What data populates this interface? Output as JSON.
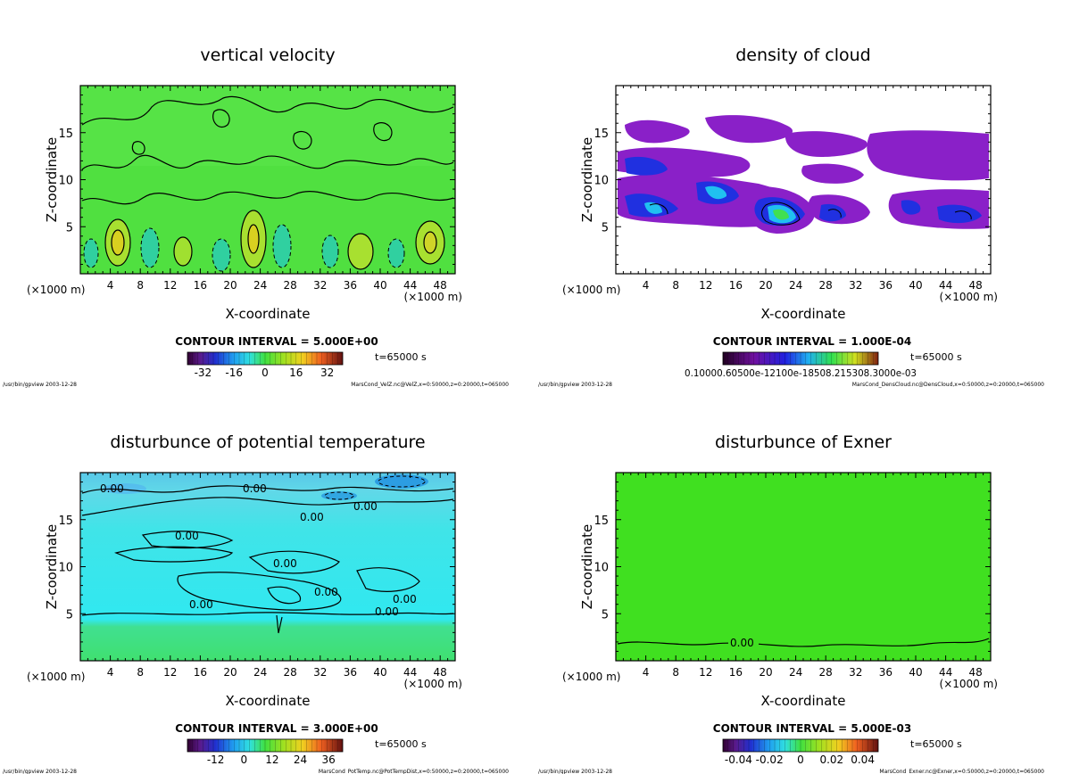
{
  "time_label": "t=65000 s",
  "chart_data": [
    {
      "type": "heatmap",
      "title": "vertical velocity",
      "xlabel": "X-coordinate",
      "ylabel": "Z-coordinate",
      "x_unit": "(×1000 m)",
      "x_ticks": [
        4,
        8,
        12,
        16,
        20,
        24,
        28,
        32,
        36,
        40,
        44,
        48
      ],
      "y_ticks": [
        5,
        10,
        15
      ],
      "xlim": [
        0,
        50
      ],
      "ylim": [
        0,
        20
      ],
      "contour_interval": "CONTOUR INTERVAL = 5.000E+00",
      "colorbar_ticks": [
        "-32",
        "-16",
        "0",
        "16",
        "32"
      ],
      "colorbar_values": [
        -32,
        -16,
        0,
        16,
        32
      ],
      "colorbar_range": [
        -40,
        40
      ],
      "colormap": "rainbow",
      "footer_left": "/usr/bin/gpview  2003-12-28",
      "footer_right": "MarsCond_VelZ.nc@VelZ,x=0:50000,z=0:20000,t=065000"
    },
    {
      "type": "heatmap",
      "title": "density of cloud",
      "xlabel": "X-coordinate",
      "ylabel": "Z-coordinate",
      "x_unit": "(×1000 m)",
      "x_ticks": [
        4,
        8,
        12,
        16,
        20,
        24,
        28,
        32,
        36,
        40,
        44,
        48
      ],
      "y_ticks": [
        5,
        10,
        15
      ],
      "xlim": [
        0,
        50
      ],
      "ylim": [
        0,
        20
      ],
      "contour_interval": "CONTOUR INTERVAL = 1.000E-04",
      "colorbar_label_text": "0.10000.60500e-12100e-18508.215308.3000e-03",
      "colormap": "purple-blue-green",
      "footer_left": "/usr/bin/gpview  2003-12-28",
      "footer_right": "MarsCond_DensCloud.nc@DensCloud,x=0:50000,z=0:20000,t=065000"
    },
    {
      "type": "heatmap",
      "title": "disturbunce of potential temperature",
      "xlabel": "X-coordinate",
      "ylabel": "Z-coordinate",
      "x_unit": "(×1000 m)",
      "x_ticks": [
        4,
        8,
        12,
        16,
        20,
        24,
        28,
        32,
        36,
        40,
        44,
        48
      ],
      "y_ticks": [
        5,
        10,
        15
      ],
      "xlim": [
        0,
        50
      ],
      "ylim": [
        0,
        20
      ],
      "contour_interval": "CONTOUR INTERVAL = 3.000E+00",
      "contour_label": "0.00",
      "colorbar_ticks": [
        "-12",
        "0",
        "12",
        "24",
        "36"
      ],
      "colorbar_values": [
        -12,
        0,
        12,
        24,
        36
      ],
      "colorbar_range": [
        -24,
        42
      ],
      "colormap": "rainbow",
      "footer_left": "/usr/bin/gpview  2003-12-28",
      "footer_right": "MarsCond_PotTemp.nc@PotTempDist,x=0:50000,z=0:20000,t=065000"
    },
    {
      "type": "heatmap",
      "title": "disturbunce of Exner",
      "xlabel": "X-coordinate",
      "ylabel": "Z-coordinate",
      "x_unit": "(×1000 m)",
      "x_ticks": [
        4,
        8,
        12,
        16,
        20,
        24,
        28,
        32,
        36,
        40,
        44,
        48
      ],
      "y_ticks": [
        5,
        10,
        15
      ],
      "xlim": [
        0,
        50
      ],
      "ylim": [
        0,
        20
      ],
      "contour_interval": "CONTOUR INTERVAL = 5.000E-03",
      "contour_label": "0.00",
      "colorbar_ticks": [
        "-0.04",
        "-0.02",
        "0",
        "0.02",
        "0.04"
      ],
      "colorbar_values": [
        -0.04,
        -0.02,
        0,
        0.02,
        0.04
      ],
      "colorbar_range": [
        -0.05,
        0.05
      ],
      "colormap": "rainbow",
      "footer_left": "/usr/bin/gpview  2003-12-28",
      "footer_right": "MarsCond_Exner.nc@Exner,x=0:50000,z=0:20000,t=065000"
    }
  ]
}
